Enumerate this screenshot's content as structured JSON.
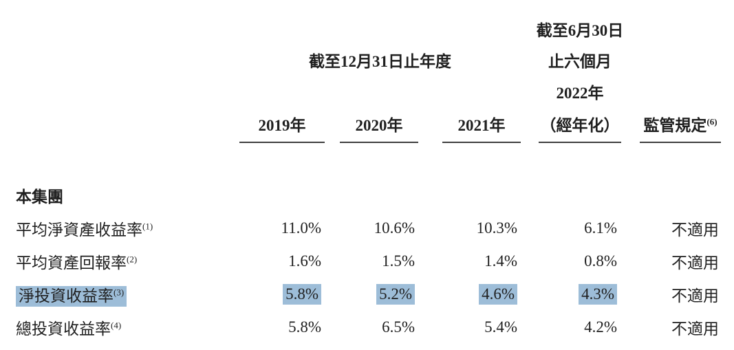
{
  "table": {
    "highlight_color": "#9dbdd8",
    "rule_color": "#3d3d3d",
    "header": {
      "annual_group_title": "截至12月31日止年度",
      "interim_group": {
        "line1": "截至6月30日",
        "line2": "止六個月",
        "line3": "2022年"
      },
      "year_columns": [
        "2019年",
        "2020年",
        "2021年"
      ],
      "annualized_label": "（經年化）",
      "regulatory_label": "監管規定",
      "regulatory_sup": "(6)"
    },
    "section_title": "本集團",
    "rows": [
      {
        "label": "平均淨資產收益率",
        "sup": "(1)",
        "highlight": false,
        "values": [
          "11.0%",
          "10.6%",
          "10.3%",
          "6.1%"
        ],
        "regulatory": "不適用"
      },
      {
        "label": "平均資產回報率",
        "sup": "(2)",
        "highlight": false,
        "values": [
          "1.6%",
          "1.5%",
          "1.4%",
          "0.8%"
        ],
        "regulatory": "不適用"
      },
      {
        "label": "淨投資收益率",
        "sup": "(3)",
        "highlight": true,
        "values": [
          "5.8%",
          "5.2%",
          "4.6%",
          "4.3%"
        ],
        "regulatory": "不適用"
      },
      {
        "label": "總投資收益率",
        "sup": "(4)",
        "highlight": false,
        "values": [
          "5.8%",
          "6.5%",
          "5.4%",
          "4.2%"
        ],
        "regulatory": "不適用"
      }
    ]
  }
}
